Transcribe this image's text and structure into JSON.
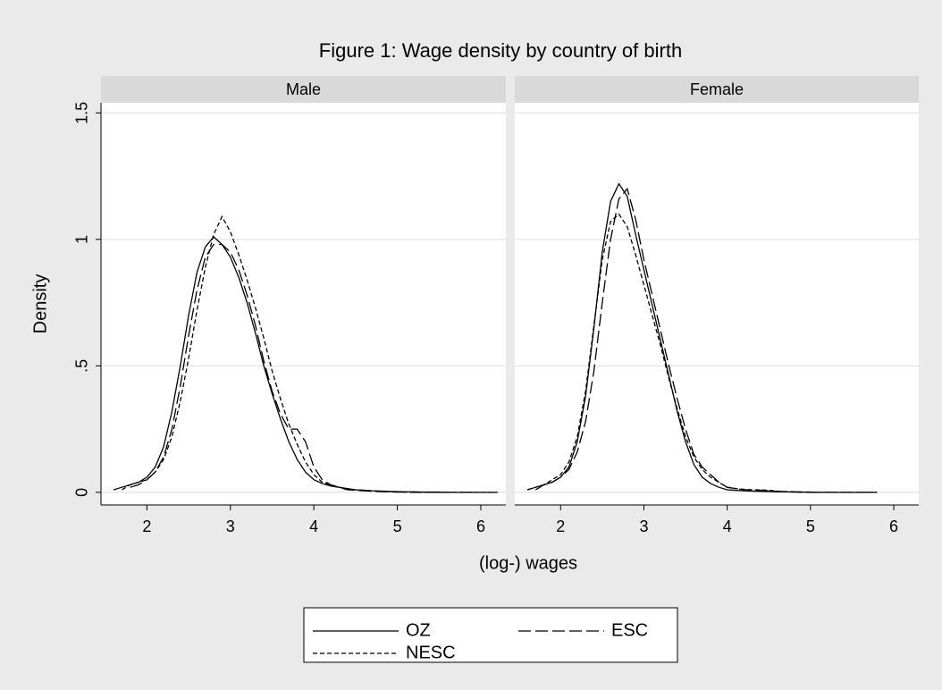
{
  "chart_data": {
    "type": "line",
    "title": "Figure 1: Wage density by country of birth",
    "xlabel": "(log-) wages",
    "ylabel": "Density",
    "x": [
      1.6,
      1.7,
      1.8,
      1.9,
      2.0,
      2.1,
      2.2,
      2.3,
      2.4,
      2.5,
      2.6,
      2.7,
      2.8,
      2.9,
      3.0,
      3.1,
      3.2,
      3.3,
      3.4,
      3.5,
      3.6,
      3.7,
      3.8,
      3.9,
      4.0,
      4.1,
      4.2,
      4.3,
      4.4,
      4.5,
      4.6,
      4.7,
      4.8,
      4.9,
      5.0,
      5.1,
      5.2,
      5.3,
      5.4,
      5.5,
      5.6,
      5.7,
      5.8,
      5.9,
      6.0,
      6.1,
      6.2
    ],
    "xlim": [
      1.45,
      6.3
    ],
    "xticks": [
      2,
      3,
      4,
      5,
      6
    ],
    "ylim": [
      -0.05,
      1.54
    ],
    "yticks": [
      0,
      {
        "value": 0.5,
        "label": ".5"
      },
      1,
      1.5
    ],
    "grid": true,
    "legend": "bottom",
    "series": [
      {
        "name": "OZ",
        "color": "#000000",
        "linestyle": "solid"
      },
      {
        "name": "ESC",
        "color": "#000000",
        "linestyle": "long-dash"
      },
      {
        "name": "NESC",
        "color": "#000000",
        "linestyle": "short-dash"
      }
    ],
    "panels": [
      {
        "title": "Male",
        "series": [
          {
            "values": [
              0.01,
              0.02,
              0.03,
              0.04,
              0.06,
              0.1,
              0.18,
              0.32,
              0.5,
              0.7,
              0.87,
              0.97,
              1.01,
              0.98,
              0.93,
              0.85,
              0.75,
              0.63,
              0.5,
              0.39,
              0.29,
              0.2,
              0.13,
              0.08,
              0.05,
              0.035,
              0.025,
              0.02,
              0.015,
              0.01,
              0.008,
              0.006,
              0.005,
              0.004,
              0.003,
              0.002,
              0.002,
              0.001,
              0.001,
              0.001,
              0,
              0,
              0,
              0,
              0,
              0,
              0
            ]
          },
          {
            "values": [
              null,
              null,
              0.02,
              0.03,
              0.05,
              0.08,
              0.14,
              0.25,
              0.42,
              0.62,
              0.8,
              0.93,
              0.98,
              0.98,
              0.95,
              0.88,
              0.78,
              0.66,
              0.52,
              0.4,
              0.31,
              0.25,
              0.25,
              0.2,
              0.1,
              0.05,
              0.03,
              0.02,
              0.01,
              0.008,
              0.006,
              0.004,
              0.003,
              0.002,
              0.001,
              0.001,
              0,
              0,
              0,
              0,
              0,
              0,
              0,
              0,
              null,
              null,
              null
            ]
          },
          {
            "values": [
              null,
              0.01,
              0.03,
              0.04,
              0.05,
              0.08,
              0.13,
              0.22,
              0.36,
              0.53,
              0.72,
              0.89,
              1.02,
              1.09,
              1.03,
              0.94,
              0.84,
              0.73,
              0.61,
              0.48,
              0.37,
              0.27,
              0.19,
              0.12,
              0.07,
              0.04,
              0.03,
              0.02,
              0.015,
              0.01,
              0.008,
              0.006,
              0.004,
              0.003,
              0.002,
              0.001,
              0.001,
              0,
              0,
              0,
              0,
              0,
              0,
              0,
              0,
              0,
              0
            ]
          }
        ]
      },
      {
        "title": "Female",
        "series": [
          {
            "values": [
              0.01,
              0.02,
              0.03,
              0.04,
              0.06,
              0.1,
              0.2,
              0.38,
              0.65,
              0.95,
              1.15,
              1.22,
              1.17,
              1.02,
              0.88,
              0.74,
              0.6,
              0.46,
              0.32,
              0.2,
              0.11,
              0.06,
              0.035,
              0.02,
              0.01,
              0.008,
              0.006,
              0.005,
              0.004,
              0.003,
              0.002,
              0.002,
              0.001,
              0.001,
              0,
              0,
              0,
              0,
              0,
              0,
              0,
              0,
              0,
              null,
              null,
              null,
              null
            ]
          },
          {
            "values": [
              null,
              0.01,
              0.03,
              0.04,
              0.06,
              0.09,
              0.16,
              0.28,
              0.48,
              0.75,
              1.0,
              1.16,
              1.2,
              1.08,
              0.92,
              0.78,
              0.64,
              0.5,
              0.37,
              0.25,
              0.15,
              0.1,
              0.07,
              0.04,
              0.02,
              0.015,
              0.01,
              0.01,
              0.008,
              0.006,
              0.004,
              0.003,
              0.002,
              0.001,
              0.001,
              0,
              0,
              0,
              0,
              0,
              0,
              0,
              0,
              null,
              null,
              null,
              null
            ]
          },
          {
            "values": [
              0.01,
              0.02,
              0.03,
              0.05,
              0.07,
              0.12,
              0.22,
              0.4,
              0.66,
              0.92,
              1.07,
              1.1,
              1.05,
              0.94,
              0.82,
              0.7,
              0.58,
              0.45,
              0.33,
              0.22,
              0.14,
              0.09,
              0.06,
              0.04,
              0.02,
              0.015,
              0.012,
              0.01,
              0.01,
              0.008,
              0.005,
              0.003,
              0.002,
              0.001,
              0.001,
              0,
              0,
              0,
              0,
              0,
              0,
              0,
              0,
              null,
              null,
              null,
              null
            ]
          }
        ]
      }
    ]
  }
}
